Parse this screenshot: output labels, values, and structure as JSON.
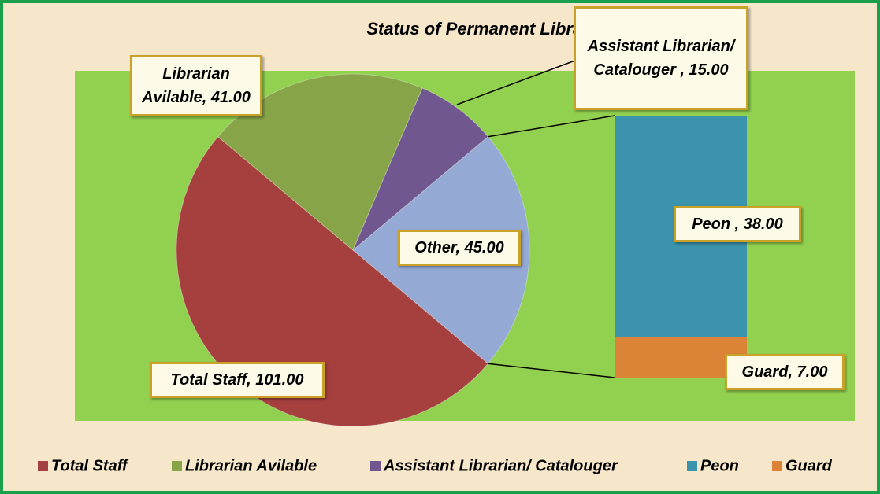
{
  "chart_data": {
    "type": "barofpie",
    "title": "Status of Permanent Library Staff",
    "slices": [
      {
        "name": "Total Staff",
        "value": 101,
        "value_label": "Total Staff, 101.00",
        "color": "#a5403f"
      },
      {
        "name": "Librarian Avilable",
        "value": 41,
        "value_label": "Librarian Avilable, 41.00",
        "color": "#87a548"
      },
      {
        "name": "Assistant Librarian/ Catalouger",
        "value": 15,
        "value_label": "Assistant Librarian/ Catalouger , 15.00",
        "color": "#71578f"
      }
    ],
    "other": {
      "value": 45,
      "value_label": "Other, 45.00",
      "color": "#95a9d5",
      "items": [
        {
          "name": "Peon",
          "value": 38,
          "value_label": "Peon , 38.00",
          "color": "#3b94ab"
        },
        {
          "name": "Guard",
          "value": 7,
          "value_label": "Guard, 7.00",
          "color": "#db8438"
        }
      ]
    },
    "legend": "bottom"
  }
}
